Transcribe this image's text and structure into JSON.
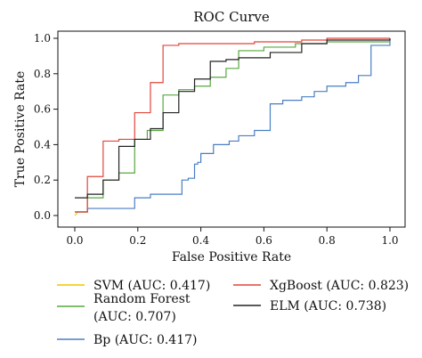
{
  "chart_data": {
    "type": "line",
    "title": "ROC Curve",
    "xlabel": "False Positive Rate",
    "ylabel": "True Positive Rate",
    "xlim": [
      0,
      1
    ],
    "ylim": [
      0,
      1
    ],
    "x_ticks": [
      "0.0",
      "0.2",
      "0.4",
      "0.6",
      "0.8",
      "1.0"
    ],
    "y_ticks": [
      "0.0",
      "0.2",
      "0.4",
      "0.6",
      "0.8",
      "1.0"
    ],
    "legend_position": "bottom",
    "series": [
      {
        "name": "SVM (AUC: 0.417)",
        "color": "#f2c500",
        "points": [
          [
            0.0,
            0.0
          ],
          [
            0.01,
            0.02
          ],
          [
            0.04,
            0.02
          ],
          [
            0.04,
            0.03
          ]
        ]
      },
      {
        "name": "Random Forest (AUC: 0.707)",
        "color": "#57a83f",
        "points": [
          [
            0.0,
            0.02
          ],
          [
            0.04,
            0.02
          ],
          [
            0.04,
            0.1
          ],
          [
            0.09,
            0.1
          ],
          [
            0.09,
            0.2
          ],
          [
            0.14,
            0.2
          ],
          [
            0.14,
            0.24
          ],
          [
            0.19,
            0.24
          ],
          [
            0.19,
            0.43
          ],
          [
            0.23,
            0.43
          ],
          [
            0.23,
            0.48
          ],
          [
            0.28,
            0.48
          ],
          [
            0.28,
            0.68
          ],
          [
            0.33,
            0.68
          ],
          [
            0.33,
            0.71
          ],
          [
            0.38,
            0.71
          ],
          [
            0.38,
            0.73
          ],
          [
            0.43,
            0.73
          ],
          [
            0.43,
            0.78
          ],
          [
            0.48,
            0.78
          ],
          [
            0.48,
            0.83
          ],
          [
            0.52,
            0.83
          ],
          [
            0.52,
            0.93
          ],
          [
            0.6,
            0.93
          ],
          [
            0.6,
            0.95
          ],
          [
            0.7,
            0.95
          ],
          [
            0.7,
            0.97
          ],
          [
            0.8,
            0.97
          ],
          [
            0.8,
            0.98
          ],
          [
            1.0,
            0.98
          ]
        ]
      },
      {
        "name": "Bp (AUC: 0.417)",
        "color": "#4a7ec2",
        "points": [
          [
            0.0,
            0.02
          ],
          [
            0.04,
            0.02
          ],
          [
            0.04,
            0.04
          ],
          [
            0.19,
            0.04
          ],
          [
            0.19,
            0.1
          ],
          [
            0.24,
            0.1
          ],
          [
            0.24,
            0.12
          ],
          [
            0.34,
            0.12
          ],
          [
            0.34,
            0.2
          ],
          [
            0.36,
            0.2
          ],
          [
            0.36,
            0.21
          ],
          [
            0.38,
            0.21
          ],
          [
            0.38,
            0.29
          ],
          [
            0.39,
            0.29
          ],
          [
            0.39,
            0.3
          ],
          [
            0.4,
            0.3
          ],
          [
            0.4,
            0.35
          ],
          [
            0.44,
            0.35
          ],
          [
            0.44,
            0.4
          ],
          [
            0.49,
            0.4
          ],
          [
            0.49,
            0.42
          ],
          [
            0.52,
            0.42
          ],
          [
            0.52,
            0.45
          ],
          [
            0.57,
            0.45
          ],
          [
            0.57,
            0.48
          ],
          [
            0.62,
            0.48
          ],
          [
            0.62,
            0.63
          ],
          [
            0.66,
            0.63
          ],
          [
            0.66,
            0.65
          ],
          [
            0.72,
            0.65
          ],
          [
            0.72,
            0.67
          ],
          [
            0.76,
            0.67
          ],
          [
            0.76,
            0.7
          ],
          [
            0.8,
            0.7
          ],
          [
            0.8,
            0.73
          ],
          [
            0.86,
            0.73
          ],
          [
            0.86,
            0.75
          ],
          [
            0.9,
            0.75
          ],
          [
            0.9,
            0.79
          ],
          [
            0.94,
            0.79
          ],
          [
            0.94,
            0.96
          ],
          [
            1.0,
            0.96
          ],
          [
            1.0,
            1.0
          ]
        ]
      },
      {
        "name": "XgBoost (AUC: 0.823)",
        "color": "#e2453a",
        "points": [
          [
            0.0,
            0.02
          ],
          [
            0.04,
            0.02
          ],
          [
            0.04,
            0.22
          ],
          [
            0.09,
            0.22
          ],
          [
            0.09,
            0.42
          ],
          [
            0.14,
            0.42
          ],
          [
            0.14,
            0.43
          ],
          [
            0.19,
            0.43
          ],
          [
            0.19,
            0.58
          ],
          [
            0.24,
            0.58
          ],
          [
            0.24,
            0.75
          ],
          [
            0.28,
            0.75
          ],
          [
            0.28,
            0.96
          ],
          [
            0.33,
            0.96
          ],
          [
            0.33,
            0.97
          ],
          [
            0.57,
            0.97
          ],
          [
            0.57,
            0.98
          ],
          [
            0.72,
            0.98
          ],
          [
            0.72,
            0.99
          ],
          [
            0.8,
            0.99
          ],
          [
            0.8,
            1.0
          ],
          [
            1.0,
            1.0
          ]
        ]
      },
      {
        "name": "ELM (AUC: 0.738)",
        "color": "#222222",
        "points": [
          [
            0.0,
            0.1
          ],
          [
            0.04,
            0.1
          ],
          [
            0.04,
            0.12
          ],
          [
            0.09,
            0.12
          ],
          [
            0.09,
            0.2
          ],
          [
            0.14,
            0.2
          ],
          [
            0.14,
            0.39
          ],
          [
            0.19,
            0.39
          ],
          [
            0.19,
            0.43
          ],
          [
            0.24,
            0.43
          ],
          [
            0.24,
            0.49
          ],
          [
            0.28,
            0.49
          ],
          [
            0.28,
            0.58
          ],
          [
            0.33,
            0.58
          ],
          [
            0.33,
            0.7
          ],
          [
            0.38,
            0.7
          ],
          [
            0.38,
            0.77
          ],
          [
            0.43,
            0.77
          ],
          [
            0.43,
            0.87
          ],
          [
            0.48,
            0.87
          ],
          [
            0.48,
            0.88
          ],
          [
            0.52,
            0.88
          ],
          [
            0.52,
            0.89
          ],
          [
            0.62,
            0.89
          ],
          [
            0.62,
            0.92
          ],
          [
            0.72,
            0.92
          ],
          [
            0.72,
            0.97
          ],
          [
            0.8,
            0.97
          ],
          [
            0.8,
            0.99
          ],
          [
            1.0,
            0.99
          ],
          [
            1.0,
            1.0
          ]
        ]
      }
    ],
    "legend": {
      "col1": [
        {
          "label": "SVM (AUC: 0.417)",
          "color": "#f2c500"
        },
        {
          "label_line1": "Random Forest",
          "label_line2": "(AUC: 0.707)",
          "color": "#57a83f"
        },
        {
          "label": "Bp (AUC: 0.417)",
          "color": "#4a7ec2"
        }
      ],
      "col2": [
        {
          "label": "XgBoost (AUC: 0.823)",
          "color": "#e2453a"
        },
        {
          "label": "ELM (AUC: 0.738)",
          "color": "#222222"
        }
      ]
    }
  }
}
